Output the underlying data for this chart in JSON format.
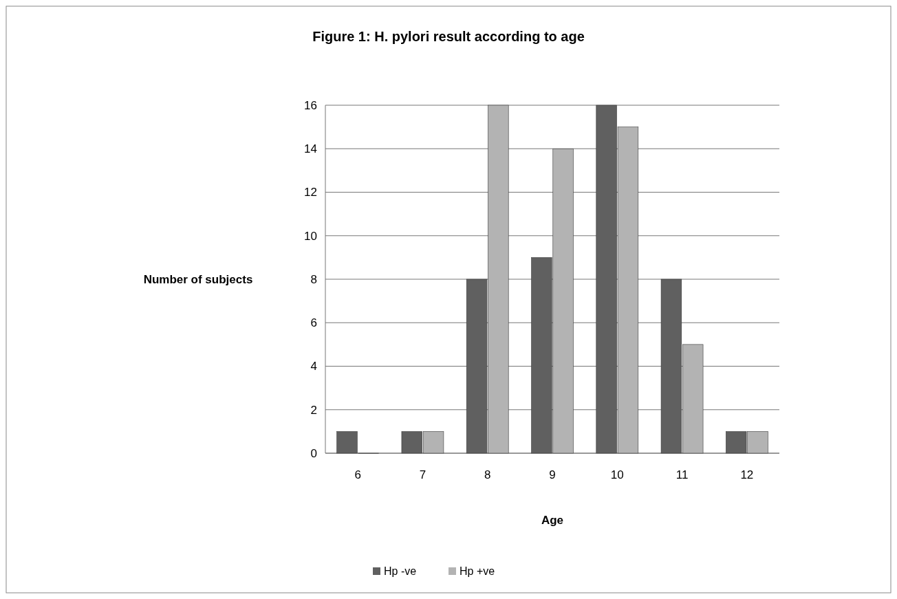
{
  "chart_data": {
    "type": "bar",
    "title": "Figure 1: H. pylori result according to age",
    "xlabel": "Age",
    "ylabel": "Number of subjects",
    "categories": [
      "6",
      "7",
      "8",
      "9",
      "10",
      "11",
      "12"
    ],
    "series": [
      {
        "name": "Hp -ve",
        "color": "#606060",
        "values": [
          1,
          1,
          8,
          9,
          16,
          8,
          1
        ]
      },
      {
        "name": "Hp +ve",
        "color": "#b3b3b3",
        "values": [
          0,
          1,
          16,
          14,
          15,
          5,
          1
        ]
      }
    ],
    "ylim": [
      0,
      16
    ],
    "yticks": [
      0,
      2,
      4,
      6,
      8,
      10,
      12,
      14,
      16
    ],
    "grid": "y",
    "legend": "bottom"
  }
}
